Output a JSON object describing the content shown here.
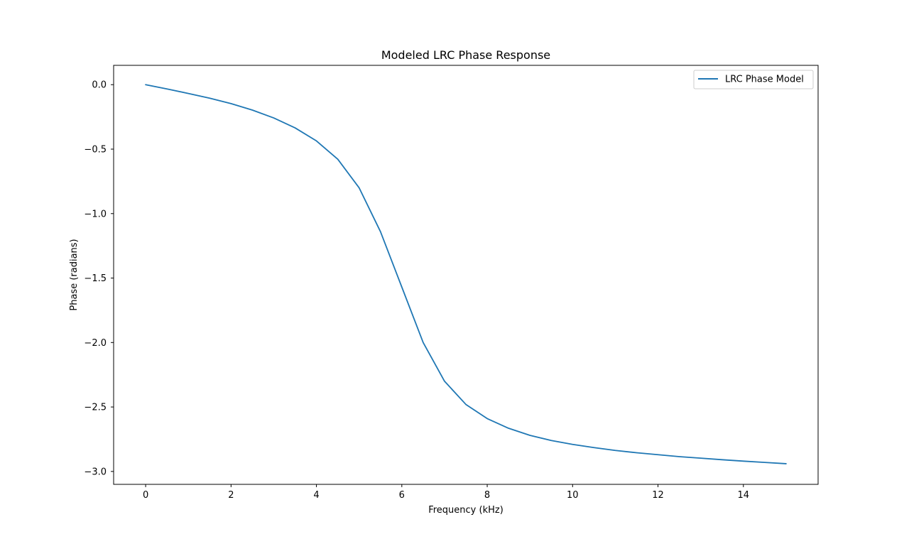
{
  "chart_data": {
    "type": "line",
    "title": "Modeled LRC Phase Response",
    "xlabel": "Frequency (kHz)",
    "ylabel": "Phase (radians)",
    "xlim": [
      -0.75,
      15.75
    ],
    "ylim": [
      -3.1,
      0.15
    ],
    "xticks": [
      0,
      2,
      4,
      6,
      8,
      10,
      12,
      14
    ],
    "xtick_labels": [
      "0",
      "2",
      "4",
      "6",
      "8",
      "10",
      "12",
      "14"
    ],
    "yticks": [
      0.0,
      -0.5,
      -1.0,
      -1.5,
      -2.0,
      -2.5,
      -3.0
    ],
    "ytick_labels": [
      "0.0",
      "−0.5",
      "−1.0",
      "−1.5",
      "−2.0",
      "−2.5",
      "−3.0"
    ],
    "grid": false,
    "legend_position": "top-right",
    "series": [
      {
        "name": "LRC Phase Model",
        "color": "#1f77b4",
        "x": [
          0,
          0.5,
          1,
          1.5,
          2,
          2.5,
          3,
          3.5,
          4,
          4.5,
          5,
          5.5,
          6,
          6.5,
          7,
          7.5,
          8,
          8.5,
          9,
          9.5,
          10,
          10.5,
          11,
          11.5,
          12,
          12.5,
          13,
          13.5,
          14,
          14.5,
          15
        ],
        "y": [
          0.0,
          -0.033,
          -0.068,
          -0.105,
          -0.147,
          -0.197,
          -0.258,
          -0.335,
          -0.436,
          -0.578,
          -0.8,
          -1.14,
          -1.57,
          -2.0,
          -2.3,
          -2.48,
          -2.59,
          -2.665,
          -2.72,
          -2.76,
          -2.79,
          -2.815,
          -2.837,
          -2.855,
          -2.87,
          -2.885,
          -2.897,
          -2.909,
          -2.92,
          -2.93,
          -2.94
        ]
      }
    ]
  }
}
